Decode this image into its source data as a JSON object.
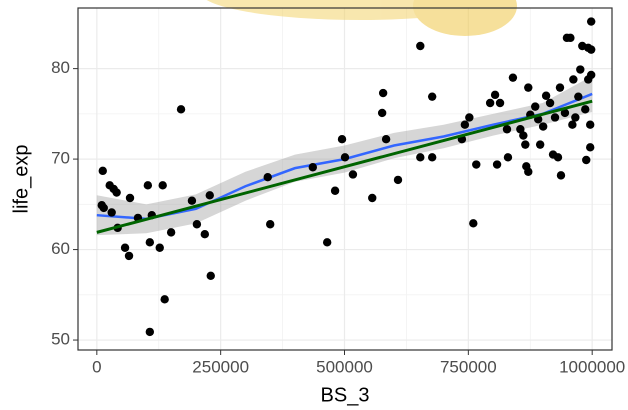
{
  "chart_data": {
    "type": "scatter",
    "x_label": "BS_3",
    "y_label": "life_exp",
    "xlim": [
      -38000,
      1040000
    ],
    "ylim": [
      48.9,
      86.7
    ],
    "xticks": [
      0,
      250000,
      500000,
      750000,
      1000000
    ],
    "yticks": [
      50,
      60,
      70,
      80
    ],
    "grid": true,
    "series": [
      {
        "type": "scatter",
        "color": "#000000",
        "x": [
          12000,
          10000,
          14000,
          26000,
          34000,
          40000,
          30000,
          42000,
          57000,
          65000,
          67000,
          83000,
          103000,
          107000,
          111000,
          107000,
          127000,
          133000,
          137000,
          150000,
          170000,
          192000,
          202000,
          218000,
          228000,
          230000,
          345000,
          350000,
          436000,
          465000,
          481000,
          495000,
          501000,
          517000,
          556000,
          576000,
          578000,
          584000,
          608000,
          653000,
          653000,
          677000,
          677000,
          737000,
          743000,
          752000,
          760000,
          766000,
          794000,
          804000,
          808000,
          814000,
          828000,
          840000,
          830000,
          855000,
          861000,
          865000,
          867000,
          871000,
          871000,
          875000,
          885000,
          891000,
          895000,
          901000,
          907000,
          915000,
          921000,
          925000,
          931000,
          935000,
          937000,
          945000,
          949000,
          956000,
          960000,
          962000,
          966000,
          972000,
          976000,
          980000,
          986000,
          988000,
          992000,
          992000,
          996000,
          996000,
          998000,
          998000,
          998000
        ],
        "values": [
          68.7,
          64.9,
          64.6,
          67.1,
          66.7,
          66.3,
          64.1,
          62.4,
          60.2,
          59.3,
          65.7,
          63.5,
          67.1,
          60.8,
          63.8,
          50.9,
          60.2,
          67.1,
          54.5,
          61.9,
          75.5,
          65.4,
          62.8,
          61.7,
          66.0,
          57.1,
          68.0,
          62.8,
          69.1,
          60.8,
          66.5,
          72.2,
          70.2,
          68.3,
          65.7,
          75.1,
          77.3,
          72.2,
          67.7,
          82.5,
          70.2,
          76.9,
          70.2,
          72.2,
          73.8,
          74.6,
          62.9,
          69.4,
          76.2,
          77.1,
          69.4,
          76.2,
          73.3,
          79.0,
          70.2,
          73.3,
          72.6,
          71.6,
          69.2,
          77.9,
          68.6,
          74.9,
          75.8,
          74.4,
          71.6,
          73.6,
          77.0,
          76.2,
          70.5,
          74.6,
          70.2,
          77.9,
          68.2,
          75.1,
          83.4,
          83.4,
          73.8,
          78.8,
          74.6,
          76.9,
          79.9,
          82.5,
          75.5,
          69.9,
          78.8,
          82.3,
          71.3,
          73.8,
          85.2,
          79.3,
          82.1
        ]
      },
      {
        "type": "smooth",
        "color": "#3366ff",
        "band_color": "#999999",
        "x": [
          0,
          100000,
          200000,
          300000,
          400000,
          500000,
          600000,
          700000,
          800000,
          900000,
          1000000
        ],
        "values": [
          63.8,
          63.4,
          64.5,
          67.0,
          69.0,
          70.0,
          71.5,
          72.5,
          73.8,
          75.0,
          77.2
        ],
        "lower": [
          61.6,
          61.8,
          62.9,
          65.4,
          67.5,
          68.5,
          70.1,
          71.2,
          72.6,
          73.8,
          75.2
        ],
        "upper": [
          66.0,
          65.0,
          66.1,
          68.6,
          70.5,
          71.5,
          72.9,
          73.8,
          75.0,
          76.2,
          79.2
        ]
      },
      {
        "type": "line",
        "color": "#006400",
        "x": [
          0,
          1000000
        ],
        "values": [
          61.9,
          76.4
        ]
      }
    ]
  }
}
